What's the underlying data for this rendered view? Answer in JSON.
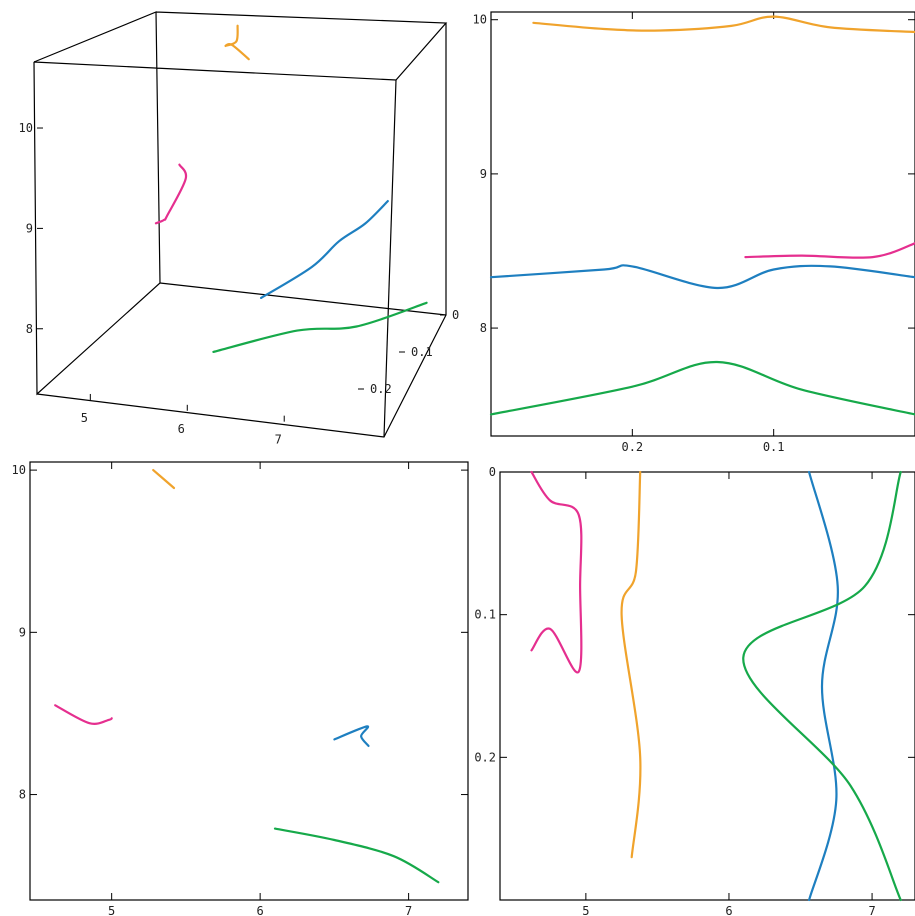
{
  "colors": {
    "orange": "#f0a32c",
    "pink": "#e52f8f",
    "blue": "#1e7fc0",
    "green": "#16a94a",
    "frame": "#000000"
  },
  "chart_data": [
    {
      "type": "line3d",
      "panel": "top-left",
      "x_ticks": [
        "5",
        "6",
        "7"
      ],
      "y_ticks": [
        "0",
        "0.1",
        "0.2"
      ],
      "z_ticks": [
        "8",
        "9",
        "10"
      ],
      "series": [
        {
          "color": "orange",
          "points": [
            [
              5.25,
              0.0,
              10.0
            ],
            [
              5.45,
              0.05,
              10.05
            ],
            [
              5.55,
              0.1,
              10.2
            ],
            [
              5.7,
              0.12,
              10.3
            ],
            [
              6.0,
              0.15,
              10.3
            ]
          ]
        },
        {
          "color": "pink",
          "points": [
            [
              4.65,
              0.0,
              8.55
            ],
            [
              4.8,
              0.02,
              8.5
            ],
            [
              4.95,
              0.1,
              8.45
            ],
            [
              5.0,
              0.12,
              8.48
            ],
            [
              5.0,
              0.14,
              8.52
            ]
          ]
        },
        {
          "color": "blue",
          "points": [
            [
              6.55,
              0.25,
              8.35
            ],
            [
              6.65,
              0.15,
              8.3
            ],
            [
              6.72,
              0.1,
              8.38
            ],
            [
              6.78,
              0.05,
              8.38
            ],
            [
              6.8,
              0.0,
              8.42
            ]
          ]
        },
        {
          "color": "green",
          "points": [
            [
              6.1,
              0.26,
              7.8
            ],
            [
              6.5,
              0.15,
              7.65
            ],
            [
              6.9,
              0.1,
              7.55
            ],
            [
              7.2,
              0.0,
              7.45
            ]
          ]
        }
      ]
    },
    {
      "type": "line",
      "panel": "top-right",
      "x_ticks": [
        "0.2",
        "0.1"
      ],
      "y_ticks": [
        "8",
        "9",
        "10"
      ],
      "series": [
        {
          "color": "orange",
          "x": [
            0.27,
            0.22,
            0.18,
            0.13,
            0.1,
            0.06,
            0.0
          ],
          "y": [
            9.98,
            9.94,
            9.93,
            9.96,
            10.02,
            9.95,
            9.92
          ]
        },
        {
          "color": "blue",
          "x": [
            0.3,
            0.22,
            0.2,
            0.14,
            0.1,
            0.06,
            0.0
          ],
          "y": [
            8.33,
            8.38,
            8.4,
            8.26,
            8.38,
            8.4,
            8.33
          ]
        },
        {
          "color": "pink",
          "x": [
            0.12,
            0.08,
            0.03,
            0.0
          ],
          "y": [
            8.46,
            8.47,
            8.46,
            8.55
          ]
        },
        {
          "color": "green",
          "x": [
            0.3,
            0.2,
            0.14,
            0.08,
            0.0
          ],
          "y": [
            7.44,
            7.62,
            7.78,
            7.6,
            7.44
          ]
        }
      ]
    },
    {
      "type": "line",
      "panel": "bottom-left",
      "x_ticks": [
        "5",
        "6",
        "7"
      ],
      "y_ticks": [
        "8",
        "9",
        "10"
      ],
      "series": [
        {
          "color": "orange",
          "x": [
            5.28,
            5.42
          ],
          "y": [
            10.0,
            9.89
          ]
        },
        {
          "color": "pink",
          "x": [
            4.62,
            4.85,
            4.98,
            5.0
          ],
          "y": [
            8.55,
            8.44,
            8.46,
            8.47
          ]
        },
        {
          "color": "blue",
          "x": [
            6.5,
            6.72,
            6.68,
            6.73
          ],
          "y": [
            8.34,
            8.42,
            8.36,
            8.3
          ]
        },
        {
          "color": "green",
          "x": [
            6.1,
            6.5,
            6.9,
            7.2
          ],
          "y": [
            7.79,
            7.72,
            7.62,
            7.46
          ]
        }
      ]
    },
    {
      "type": "line",
      "panel": "bottom-right",
      "x_ticks": [
        "5",
        "6",
        "7"
      ],
      "y_ticks": [
        "0",
        "0.1",
        "0.2"
      ],
      "series": [
        {
          "color": "orange",
          "x": [
            5.38,
            5.35,
            5.25,
            5.38,
            5.32
          ],
          "y": [
            0.0,
            0.07,
            0.1,
            0.2,
            0.27
          ]
        },
        {
          "color": "pink",
          "x": [
            4.62,
            4.75,
            4.95,
            4.96,
            4.95,
            4.75,
            4.62
          ],
          "y": [
            0.0,
            0.02,
            0.03,
            0.08,
            0.14,
            0.11,
            0.125
          ]
        },
        {
          "color": "blue",
          "x": [
            6.56,
            6.76,
            6.65,
            6.75,
            6.56
          ],
          "y": [
            0.0,
            0.08,
            0.15,
            0.23,
            0.3
          ]
        },
        {
          "color": "green",
          "x": [
            7.2,
            6.95,
            6.1,
            6.85,
            7.2
          ],
          "y": [
            0.0,
            0.08,
            0.13,
            0.22,
            0.3
          ]
        }
      ]
    }
  ]
}
